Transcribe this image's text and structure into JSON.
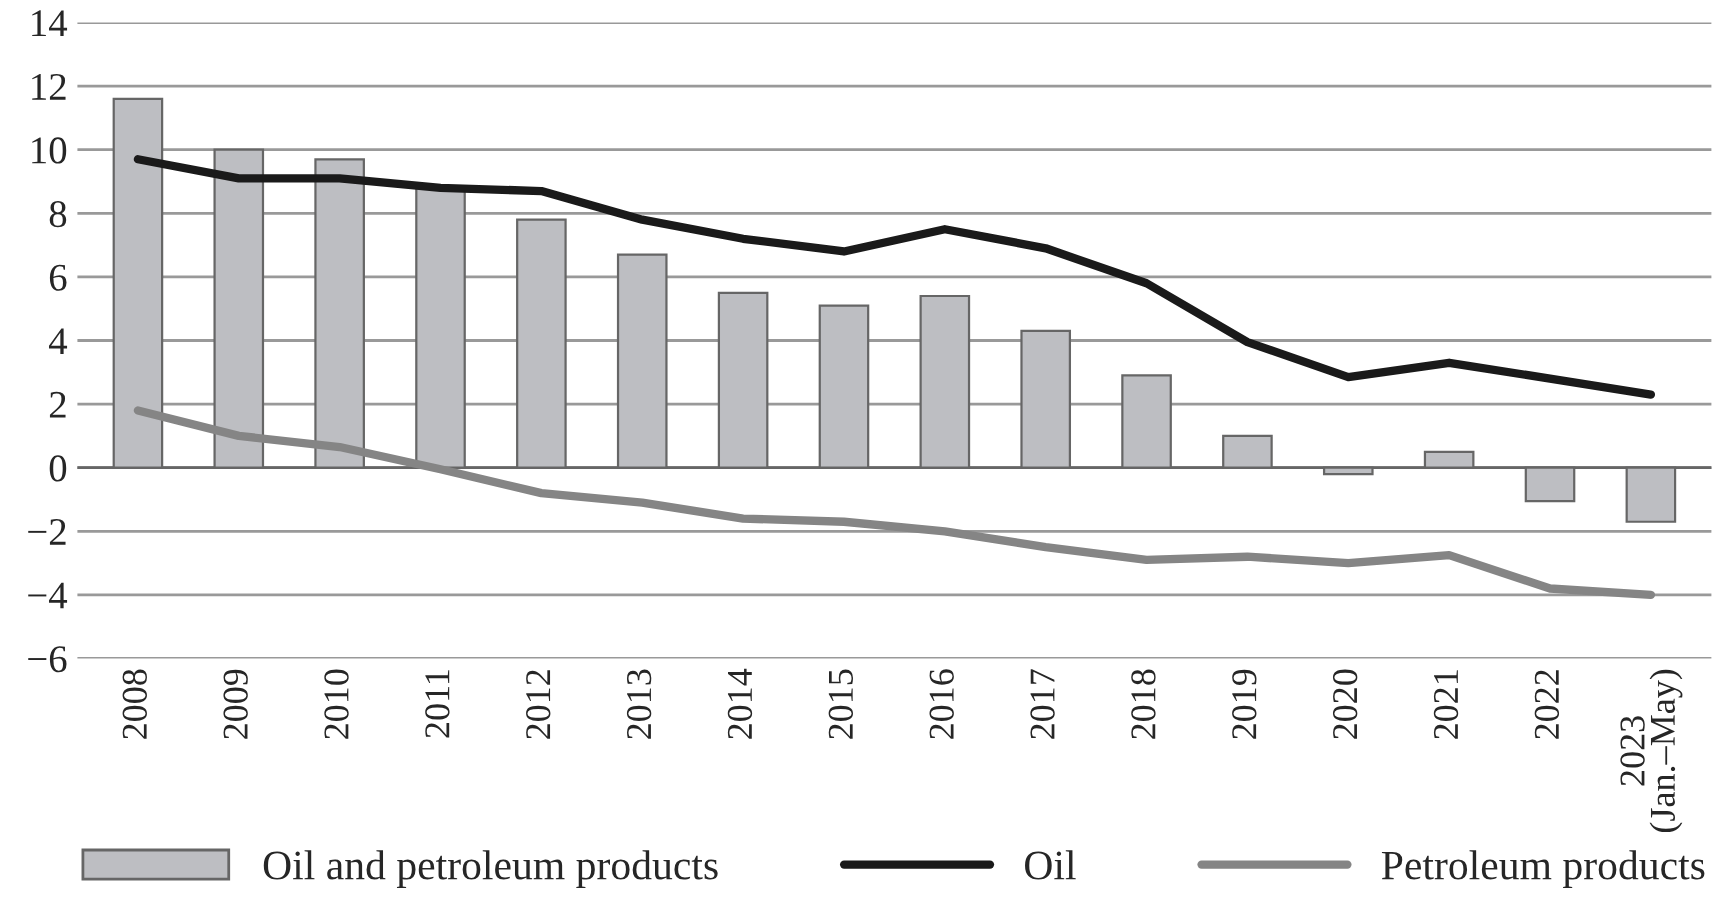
{
  "chart_data": {
    "type": "bar",
    "categories": [
      "2008",
      "2009",
      "2010",
      "2011",
      "2012",
      "2013",
      "2014",
      "2015",
      "2016",
      "2017",
      "2018",
      "2019",
      "2020",
      "2021",
      "2022",
      "2023\n(Jan.–May)"
    ],
    "series": [
      {
        "name": "Oil and petroleum products",
        "color": "#bdbec2",
        "values": [
          11.6,
          10.0,
          9.7,
          8.8,
          7.8,
          6.7,
          5.5,
          5.1,
          5.4,
          4.3,
          2.9,
          1.0,
          -0.2,
          0.5,
          -1.05,
          -1.7
        ]
      },
      {
        "name": "Oil",
        "type": "line",
        "color": "#1a1a1a",
        "values": [
          9.7,
          9.1,
          9.1,
          8.8,
          8.7,
          7.8,
          7.2,
          6.8,
          7.5,
          6.9,
          5.8,
          3.95,
          2.85,
          3.3,
          2.8,
          2.3
        ]
      },
      {
        "name": "Petroleum products",
        "type": "line",
        "color": "#858585",
        "values": [
          1.8,
          1.0,
          0.65,
          -0.05,
          -0.8,
          -1.1,
          -1.6,
          -1.7,
          -2.0,
          -2.5,
          -2.9,
          -2.8,
          -3.0,
          -2.75,
          -3.8,
          -4.0
        ]
      }
    ],
    "ylim": [
      -6,
      14
    ],
    "yticks": [
      {
        "value": -6,
        "label": "−6"
      },
      {
        "value": -4,
        "label": "−4"
      },
      {
        "value": -2,
        "label": "−2"
      },
      0,
      2,
      4,
      6,
      8,
      10,
      12,
      14
    ],
    "grid": "y",
    "legend": "bottom",
    "line_style": "solid",
    "marker": "none"
  }
}
